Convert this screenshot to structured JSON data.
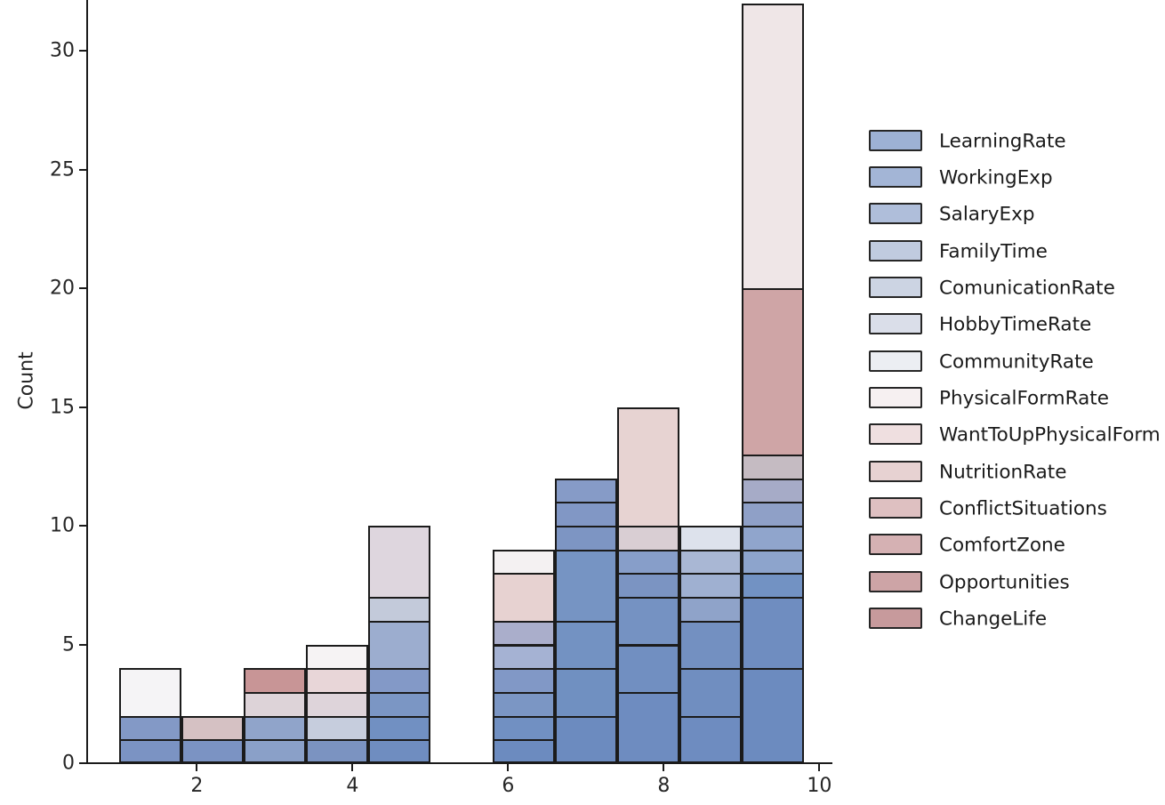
{
  "chart_data": {
    "type": "bar",
    "subtype": "stacked-histogram",
    "title": "",
    "xlabel": "",
    "ylabel": "Count",
    "grid": false,
    "legend_position": "right-outside",
    "edge_color": "#1b1b1b",
    "x_tick_labels": [
      "2",
      "4",
      "6",
      "8",
      "10"
    ],
    "x_tick_values": [
      2,
      4,
      6,
      8,
      10
    ],
    "y_tick_labels": [
      "0",
      "5",
      "10",
      "15",
      "20",
      "25",
      "30"
    ],
    "y_tick_values": [
      0,
      5,
      10,
      15,
      20,
      25,
      30
    ],
    "xlim": [
      0.59,
      10.17
    ],
    "ylim": [
      0,
      32.2
    ],
    "bin_edges": [
      1.0,
      1.8,
      2.6,
      3.4,
      4.2,
      5.0,
      5.8,
      6.6,
      7.4,
      8.2,
      9.0,
      9.8
    ],
    "bin_totals": [
      4,
      2,
      4,
      5,
      10,
      0,
      9,
      12,
      15,
      10,
      32
    ],
    "series": [
      {
        "name": "LearningRate",
        "legend_color": "#9db1d4",
        "total_estimated": 16
      },
      {
        "name": "WorkingExp",
        "legend_color": "#a3b5d6",
        "total_estimated": 12
      },
      {
        "name": "SalaryExp",
        "legend_color": "#afbeda",
        "total_estimated": 10
      },
      {
        "name": "FamilyTime",
        "legend_color": "#c0cbdf",
        "total_estimated": 9
      },
      {
        "name": "ComunicationRate",
        "legend_color": "#ccd4e3",
        "total_estimated": 8
      },
      {
        "name": "HobbyTimeRate",
        "legend_color": "#dadee9",
        "total_estimated": 6
      },
      {
        "name": "CommunityRate",
        "legend_color": "#eceef3",
        "total_estimated": 5
      },
      {
        "name": "PhysicalFormRate",
        "legend_color": "#f6f0f1",
        "total_estimated": 2
      },
      {
        "name": "WantToUpPhysicalForm",
        "legend_color": "#efdfe0",
        "total_estimated": 16
      },
      {
        "name": "NutritionRate",
        "legend_color": "#e7d2d2",
        "total_estimated": 9
      },
      {
        "name": "ConflictSituations",
        "legend_color": "#dec0c1",
        "total_estimated": 1
      },
      {
        "name": "ComfortZone",
        "legend_color": "#d5b1b3",
        "total_estimated": 1
      },
      {
        "name": "Opportunities",
        "legend_color": "#cda4a6",
        "total_estimated": 7
      },
      {
        "name": "ChangeLife",
        "legend_color": "#c79a9c",
        "total_estimated": 1
      }
    ],
    "bins": [
      {
        "x0": 1.0,
        "x1": 1.8,
        "total": 4,
        "segments": [
          {
            "series": "LearningRate",
            "count": 1,
            "color": "#7b93c3"
          },
          {
            "series": "WorkingExp",
            "count": 1,
            "color": "#8399c6"
          },
          {
            "series": "CommunityRate",
            "count": 2,
            "color": "#f5f4f6"
          }
        ]
      },
      {
        "x0": 1.8,
        "x1": 2.6,
        "total": 2,
        "segments": [
          {
            "series": "LearningRate",
            "count": 1,
            "color": "#7b93c3"
          },
          {
            "series": "ConflictSituations",
            "count": 1,
            "color": "#d5c1c3"
          }
        ]
      },
      {
        "x0": 2.6,
        "x1": 3.4,
        "total": 4,
        "segments": [
          {
            "series": "SalaryExp",
            "count": 1,
            "color": "#8aa0c8"
          },
          {
            "series": "FamilyTime",
            "count": 1,
            "color": "#90a4ca"
          },
          {
            "series": "NutritionRate",
            "count": 1,
            "color": "#ddd3d8"
          },
          {
            "series": "ChangeLife",
            "count": 1,
            "color": "#c89596"
          }
        ]
      },
      {
        "x0": 3.4,
        "x1": 4.2,
        "total": 5,
        "segments": [
          {
            "series": "LearningRate",
            "count": 1,
            "color": "#7b93c1"
          },
          {
            "series": "ComunicationRate",
            "count": 1,
            "color": "#c6cddd"
          },
          {
            "series": "HobbyTimeRate",
            "count": 1,
            "color": "#ded4da"
          },
          {
            "series": "NutritionRate",
            "count": 1,
            "color": "#e8d6d8"
          },
          {
            "series": "PhysicalFormRate",
            "count": 1,
            "color": "#f6f3f4"
          }
        ]
      },
      {
        "x0": 4.2,
        "x1": 5.0,
        "total": 10,
        "segments": [
          {
            "series": "LearningRate",
            "count": 1,
            "color": "#6f8dc0"
          },
          {
            "series": "WorkingExp",
            "count": 1,
            "color": "#7190c2"
          },
          {
            "series": "SalaryExp",
            "count": 1,
            "color": "#7b96c4"
          },
          {
            "series": "FamilyTime",
            "count": 1,
            "color": "#8399c7"
          },
          {
            "series": "ComunicationRate",
            "count": 2,
            "color": "#9cadcf"
          },
          {
            "series": "HobbyTimeRate",
            "count": 1,
            "color": "#c3cada"
          },
          {
            "series": "WantToUpPhysicalForm",
            "count": 3,
            "color": "#ded6de"
          }
        ]
      },
      {
        "x0": 5.0,
        "x1": 5.8,
        "total": 0,
        "segments": []
      },
      {
        "x0": 5.8,
        "x1": 6.6,
        "total": 9,
        "segments": [
          {
            "series": "LearningRate",
            "count": 1,
            "color": "#6c8bbf"
          },
          {
            "series": "WorkingExp",
            "count": 1,
            "color": "#7190c2"
          },
          {
            "series": "SalaryExp",
            "count": 1,
            "color": "#7b96c4"
          },
          {
            "series": "FamilyTime",
            "count": 1,
            "color": "#8198c6"
          },
          {
            "series": "ComunicationRate",
            "count": 1,
            "color": "#a5b2d3"
          },
          {
            "series": "HobbyTimeRate",
            "count": 1,
            "color": "#aaaecb"
          },
          {
            "series": "NutritionRate",
            "count": 2,
            "color": "#e7d2d1"
          },
          {
            "series": "PhysicalFormRate",
            "count": 1,
            "color": "#f4f1f2"
          }
        ]
      },
      {
        "x0": 6.6,
        "x1": 7.4,
        "total": 12,
        "segments": [
          {
            "series": "LearningRate",
            "count": 2,
            "color": "#6c8bbf"
          },
          {
            "series": "WorkingExp",
            "count": 2,
            "color": "#7090c1"
          },
          {
            "series": "SalaryExp",
            "count": 2,
            "color": "#7392c2"
          },
          {
            "series": "FamilyTime",
            "count": 3,
            "color": "#7694c3"
          },
          {
            "series": "ComunicationRate",
            "count": 1,
            "color": "#7d95c3"
          },
          {
            "series": "HobbyTimeRate",
            "count": 1,
            "color": "#8197c5"
          },
          {
            "series": "CommunityRate",
            "count": 1,
            "color": "#869bc7"
          }
        ]
      },
      {
        "x0": 7.4,
        "x1": 8.2,
        "total": 15,
        "segments": [
          {
            "series": "LearningRate",
            "count": 3,
            "color": "#6e8cc0"
          },
          {
            "series": "WorkingExp",
            "count": 2,
            "color": "#718fc1"
          },
          {
            "series": "SalaryExp",
            "count": 2,
            "color": "#7592c2"
          },
          {
            "series": "FamilyTime",
            "count": 1,
            "color": "#7b94c2"
          },
          {
            "series": "ComunicationRate",
            "count": 1,
            "color": "#879ec9"
          },
          {
            "series": "WantToUpPhysicalForm",
            "count": 1,
            "color": "#d9ced3"
          },
          {
            "series": "NutritionRate",
            "count": 5,
            "color": "#e7d3d2"
          }
        ]
      },
      {
        "x0": 8.2,
        "x1": 9.0,
        "total": 10,
        "segments": [
          {
            "series": "LearningRate",
            "count": 2,
            "color": "#6e8cc0"
          },
          {
            "series": "WorkingExp",
            "count": 2,
            "color": "#708ec0"
          },
          {
            "series": "SalaryExp",
            "count": 2,
            "color": "#7390c1"
          },
          {
            "series": "FamilyTime",
            "count": 1,
            "color": "#8fa3c9"
          },
          {
            "series": "ComunicationRate",
            "count": 1,
            "color": "#9fb0d1"
          },
          {
            "series": "HobbyTimeRate",
            "count": 1,
            "color": "#a9b7d4"
          },
          {
            "series": "CommunityRate",
            "count": 1,
            "color": "#dde2ec"
          }
        ]
      },
      {
        "x0": 9.0,
        "x1": 9.8,
        "total": 32,
        "segments": [
          {
            "series": "LearningRate",
            "count": 4,
            "color": "#6c8bbf"
          },
          {
            "series": "WorkingExp",
            "count": 3,
            "color": "#6f8dc0"
          },
          {
            "series": "SalaryExp",
            "count": 1,
            "color": "#7292c3"
          },
          {
            "series": "FamilyTime",
            "count": 1,
            "color": "#8da4cc"
          },
          {
            "series": "ComunicationRate",
            "count": 1,
            "color": "#90a5cc"
          },
          {
            "series": "HobbyTimeRate",
            "count": 1,
            "color": "#8fa0c7"
          },
          {
            "series": "CommunityRate",
            "count": 1,
            "color": "#a6abc7"
          },
          {
            "series": "ComfortZone",
            "count": 1,
            "color": "#c5bbc2"
          },
          {
            "series": "Opportunities",
            "count": 7,
            "color": "#cfa5a6"
          },
          {
            "series": "WantToUpPhysicalForm",
            "count": 12,
            "color": "#efe6e7"
          }
        ]
      }
    ]
  },
  "legend": {
    "items": [
      {
        "label": "LearningRate",
        "color": "#9db1d4"
      },
      {
        "label": "WorkingExp",
        "color": "#a3b5d6"
      },
      {
        "label": "SalaryExp",
        "color": "#afbeda"
      },
      {
        "label": "FamilyTime",
        "color": "#c0cbdf"
      },
      {
        "label": "ComunicationRate",
        "color": "#ccd4e3"
      },
      {
        "label": "HobbyTimeRate",
        "color": "#dadee9"
      },
      {
        "label": "CommunityRate",
        "color": "#eceef3"
      },
      {
        "label": "PhysicalFormRate",
        "color": "#f6f0f1"
      },
      {
        "label": "WantToUpPhysicalForm",
        "color": "#efdfe0"
      },
      {
        "label": "NutritionRate",
        "color": "#e7d2d2"
      },
      {
        "label": "ConflictSituations",
        "color": "#dec0c1"
      },
      {
        "label": "ComfortZone",
        "color": "#d5b1b3"
      },
      {
        "label": "Opportunities",
        "color": "#cda4a6"
      },
      {
        "label": "ChangeLife",
        "color": "#c79a9c"
      }
    ]
  }
}
